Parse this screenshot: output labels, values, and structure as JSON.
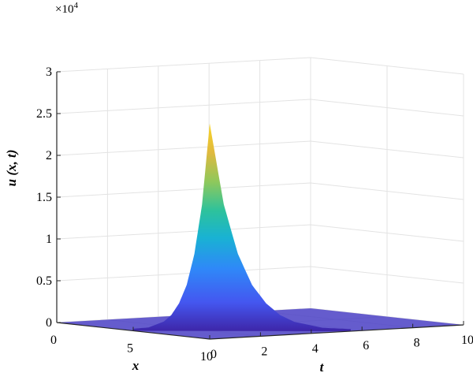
{
  "chart_data": {
    "type": "surface",
    "title": "",
    "zlabel": "u (x, t)",
    "xlabel": "x",
    "tlabel": "t",
    "z_multiplier": "×10",
    "z_multiplier_exp": "4",
    "x_ticks": [
      "0",
      "5",
      "10"
    ],
    "t_ticks": [
      "0",
      "2",
      "4",
      "6",
      "8",
      "10"
    ],
    "z_ticks": [
      "0",
      "0.5",
      "1",
      "1.5",
      "2",
      "2.5",
      "3"
    ],
    "xlim": [
      0,
      10
    ],
    "tlim": [
      0,
      10
    ],
    "zlim": [
      0,
      30000
    ],
    "grid": true,
    "colormap": "parula",
    "peak": {
      "x": 10,
      "t": 0,
      "u": 25800
    },
    "profile_u_vs_distance_from_peak": [
      [
        0,
        25800
      ],
      [
        0.5,
        16000
      ],
      [
        1,
        10000
      ],
      [
        1.5,
        6200
      ],
      [
        2,
        3900
      ],
      [
        2.5,
        2400
      ],
      [
        3,
        1500
      ],
      [
        4,
        600
      ],
      [
        5,
        250
      ],
      [
        7,
        60
      ],
      [
        10,
        0
      ]
    ]
  },
  "colors": {
    "axis": "#262626",
    "grid": "#e3e3e3",
    "colormap_stops": [
      "#3e26a8",
      "#4457f0",
      "#2f88f8",
      "#19b2d3",
      "#2dc29c",
      "#8fc85b",
      "#e0b93e",
      "#f9d527"
    ]
  }
}
